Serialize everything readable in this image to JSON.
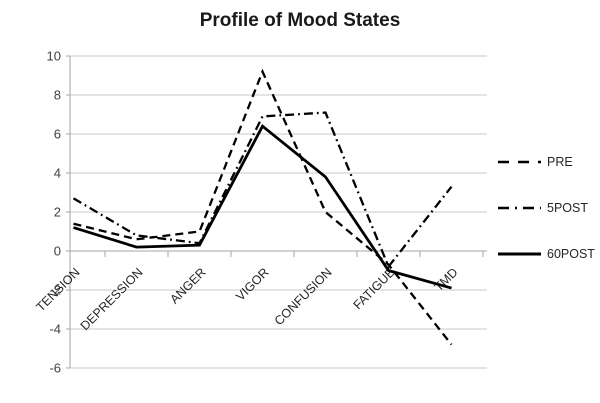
{
  "chart_data": {
    "type": "line",
    "title": "Profile of Mood States",
    "categories": [
      "TENSION",
      "DEPRESSION",
      "ANGER",
      "VIGOR",
      "CONFUSION",
      "FATIGUE",
      "TMD"
    ],
    "series": [
      {
        "name": "PRE",
        "style": "dashed",
        "values": [
          1.4,
          0.6,
          1.0,
          9.2,
          2.0,
          -0.7,
          -4.8
        ]
      },
      {
        "name": "5POST",
        "style": "dash-dot",
        "values": [
          2.7,
          0.8,
          0.4,
          6.9,
          7.1,
          -0.8,
          3.3
        ]
      },
      {
        "name": "60POST",
        "style": "solid",
        "values": [
          1.2,
          0.2,
          0.3,
          6.4,
          3.8,
          -1.0,
          -1.9
        ]
      }
    ],
    "ylim": [
      -6,
      10
    ],
    "yticks": [
      10,
      8,
      6,
      4,
      2,
      0,
      -2,
      -4,
      -6
    ],
    "grid": "horizontal",
    "legend_position": "right",
    "series_color": "#000000",
    "grid_color": "#c9c9c9",
    "axis_color": "#a6a6a6",
    "tick_label_color": "#3f3f3f"
  }
}
